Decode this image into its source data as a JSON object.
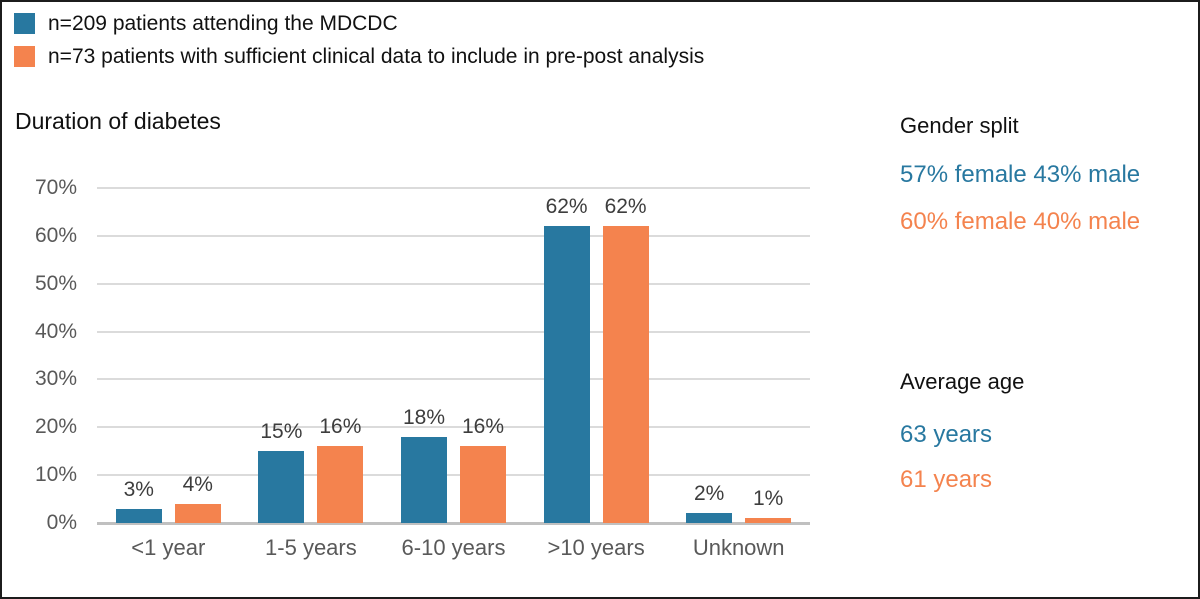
{
  "colors": {
    "blue": "#2878a0",
    "orange": "#f4834e",
    "gridline": "#dbdbdb",
    "axis_line": "#c0c0c0",
    "tick_text": "#595959",
    "data_label_text": "#3d3d3d",
    "border": "#1c1c1c"
  },
  "legend": {
    "items": [
      {
        "label": "n=209 patients attending the MDCDC",
        "color": "#2878a0"
      },
      {
        "label": "n=73 patients with sufficient clinical data to include in pre-post analysis",
        "color": "#f4834e"
      }
    ]
  },
  "chart_data": {
    "type": "bar",
    "title": "Duration of diabetes",
    "categories": [
      "<1 year",
      "1-5 years",
      "6-10 years",
      ">10 years",
      "Unknown"
    ],
    "series": [
      {
        "name": "n=209 patients attending the MDCDC",
        "color": "#2878a0",
        "values": [
          3,
          15,
          18,
          62,
          2
        ],
        "labels": [
          "3%",
          "15%",
          "18%",
          "62%",
          "2%"
        ]
      },
      {
        "name": "n=73 patients with sufficient clinical data to include in pre-post analysis",
        "color": "#f4834e",
        "values": [
          4,
          16,
          16,
          62,
          1
        ],
        "labels": [
          "4%",
          "16%",
          "16%",
          "62%",
          "1%"
        ]
      }
    ],
    "ylim": [
      0,
      70
    ],
    "ytick_step": 10,
    "yticks": [
      "0%",
      "10%",
      "20%",
      "30%",
      "40%",
      "50%",
      "60%",
      "70%"
    ],
    "value_suffix": "%",
    "grid": true,
    "data_labels": true,
    "legend_position": "top-left",
    "xlabel": "",
    "ylabel": ""
  },
  "side_panel": {
    "gender_split": {
      "heading": "Gender split",
      "lines": [
        {
          "text": "57% female 43% male",
          "color": "#2878a0"
        },
        {
          "text": "60% female 40% male",
          "color": "#f4834e"
        }
      ]
    },
    "average_age": {
      "heading": "Average age",
      "lines": [
        {
          "text": "63 years",
          "color": "#2878a0"
        },
        {
          "text": "61 years",
          "color": "#f4834e"
        }
      ]
    }
  }
}
